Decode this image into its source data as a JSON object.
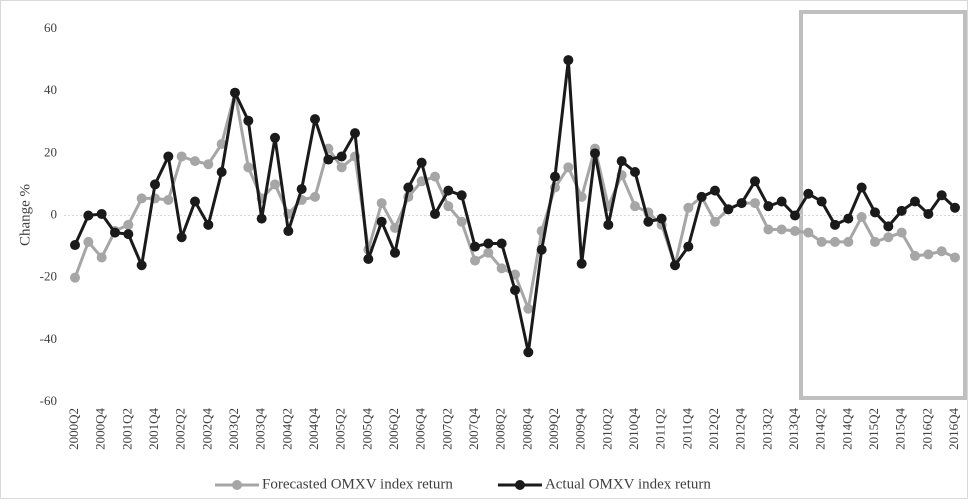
{
  "chart_data": {
    "type": "line",
    "y_label": "Change %",
    "categories": [
      "2000Q2",
      null,
      "2000Q4",
      null,
      "2001Q2",
      null,
      "2001Q4",
      null,
      "2002Q2",
      null,
      "2002Q4",
      null,
      "2003Q2",
      null,
      "2003Q4",
      null,
      "2004Q2",
      null,
      "2004Q4",
      null,
      "2005Q2",
      null,
      "2005Q4",
      null,
      "2006Q2",
      null,
      "2006Q4",
      null,
      "2007Q2",
      null,
      "2007Q4",
      null,
      "2008Q2",
      null,
      "2008Q4",
      null,
      "2009Q2",
      null,
      "2009Q4",
      null,
      "2010Q2",
      null,
      "2010Q4",
      null,
      "2011Q2",
      null,
      "2011Q4",
      null,
      "2012Q2",
      null,
      "2012Q4",
      null,
      "2013Q2",
      null,
      "2013Q4",
      null,
      "2014Q2",
      null,
      "2014Q4",
      null,
      "2015Q2",
      null,
      "2015Q4",
      null,
      "2016Q2",
      null,
      "2016Q4"
    ],
    "series": [
      {
        "name": "Forecasted OMXV index return",
        "color": "#a6a6a6",
        "values": [
          -20,
          -8.5,
          -13.5,
          -5,
          -3,
          5.5,
          5.5,
          5,
          19,
          17.5,
          16.5,
          23,
          39.5,
          15.5,
          5.5,
          10,
          0.5,
          5,
          6,
          21.5,
          15.5,
          19,
          -11,
          4,
          -4,
          6,
          11,
          12.5,
          3,
          -2,
          -14.5,
          -12,
          -17,
          -19,
          -30,
          -5,
          9,
          15.5,
          6,
          21.5,
          3,
          13,
          3,
          1,
          -3,
          -16,
          2.5,
          6,
          -2,
          2,
          4,
          4,
          -4.5,
          -4.5,
          -5,
          -5.5,
          -8.5,
          -8.5,
          -8.5,
          -0.5,
          -8.5,
          -7,
          -5.5,
          -13,
          -12.5,
          -11.5,
          -13.5
        ]
      },
      {
        "name": "Actual OMXV index return",
        "color": "#1a1a1a",
        "values": [
          -9.5,
          0,
          0.5,
          -5.5,
          -6,
          -16,
          10,
          19,
          -7,
          4.5,
          -3,
          14,
          39.5,
          30.5,
          -1,
          25,
          -5,
          8.5,
          31,
          18,
          19,
          26.5,
          -14,
          -2,
          -12,
          9,
          17,
          0.5,
          8,
          6.5,
          -10,
          -9,
          -9,
          -24,
          -44,
          -11,
          12.5,
          50,
          -15.5,
          20,
          -3,
          17.5,
          14,
          -2,
          -1,
          -16,
          -10,
          6,
          8,
          2,
          4,
          11,
          3,
          4.5,
          0,
          7,
          4.5,
          -3,
          -1,
          9,
          1,
          -3.5,
          1.5,
          4.5,
          0.5,
          6.5,
          2.5
        ]
      }
    ],
    "ylim": [
      -60,
      60
    ],
    "yticks": [
      -60,
      -40,
      -20,
      0,
      20,
      40,
      60
    ],
    "grid": false,
    "legend": "bottom"
  }
}
